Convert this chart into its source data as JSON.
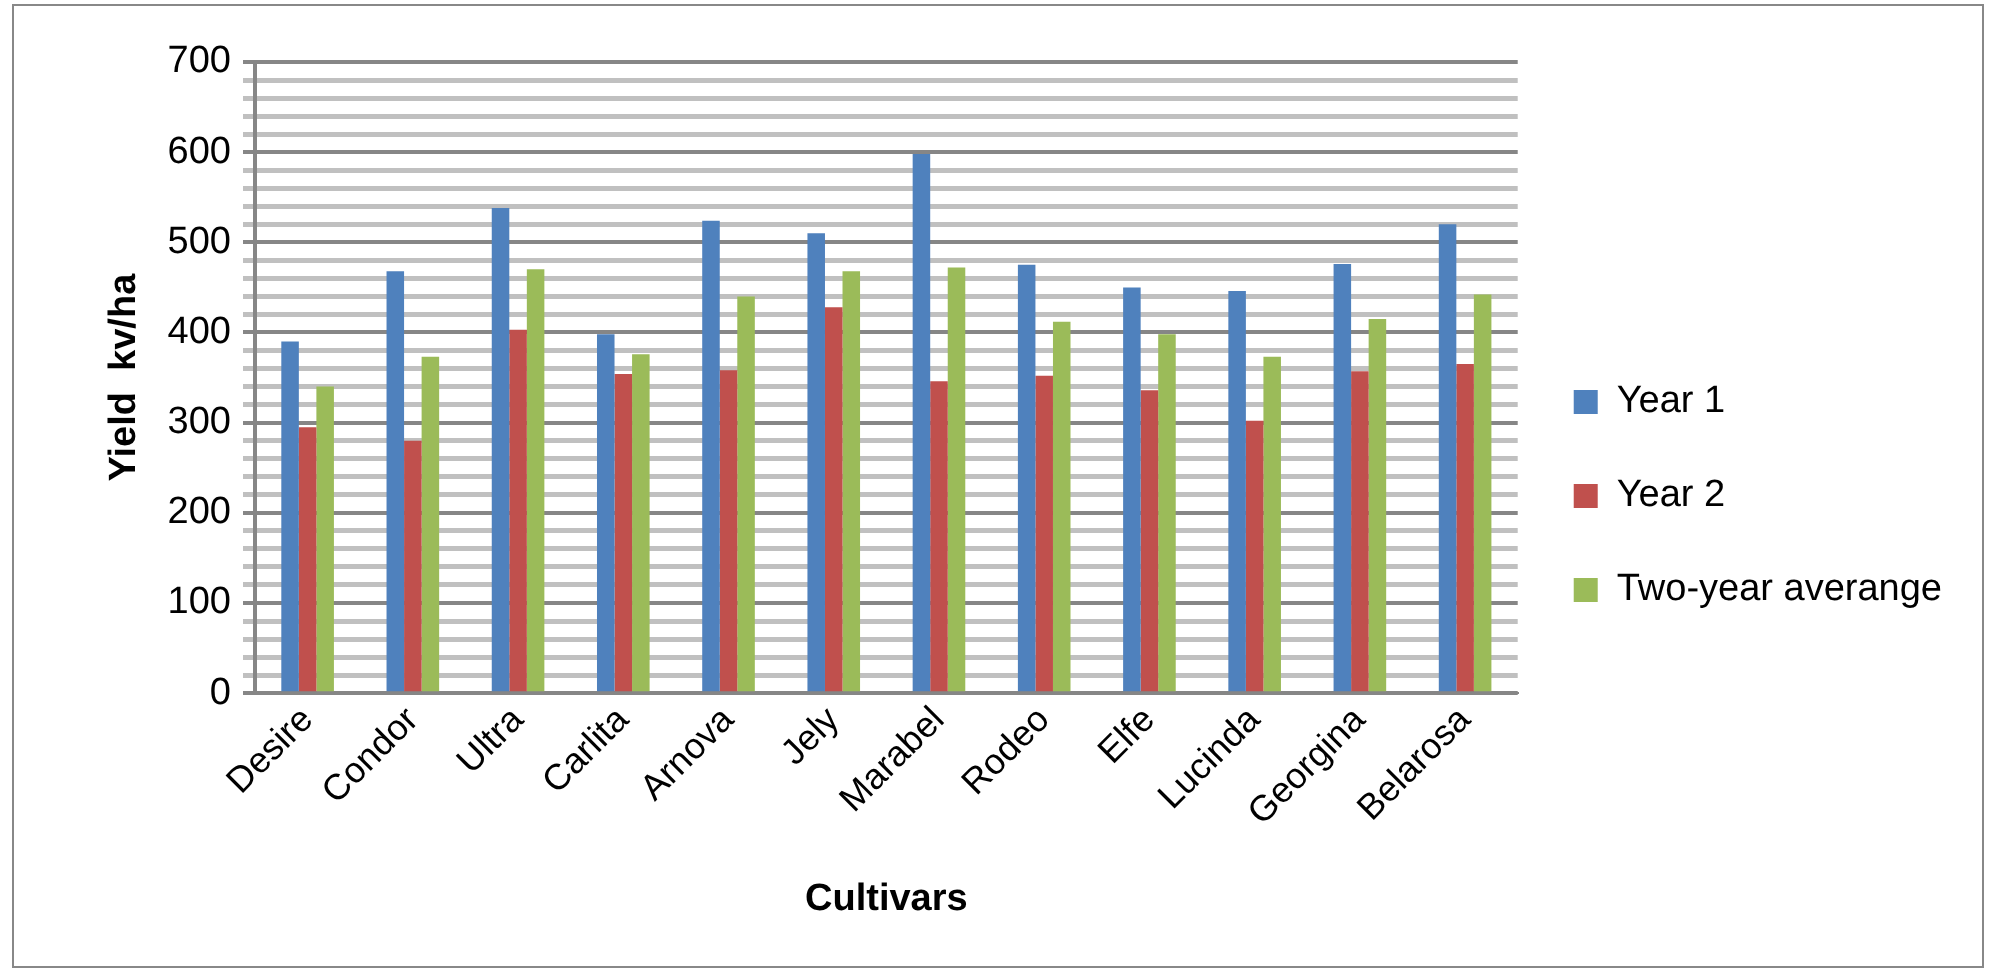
{
  "chart_data": {
    "type": "bar",
    "xlabel": "Cultivars",
    "ylabel": "Yield  kv/ha",
    "categories": [
      "Desire",
      "Condor",
      "Ultra",
      "Carlita",
      "Arnova",
      "Jely",
      "Marabel",
      "Rodeo",
      "Elfe",
      "Lucinda",
      "Georgina",
      "Belarosa"
    ],
    "series": [
      {
        "name": "Year 1",
        "color": "#4f81bd",
        "values": [
          390,
          468,
          538,
          398,
          524,
          510,
          598,
          475,
          450,
          446,
          476,
          520
        ]
      },
      {
        "name": "Year 2",
        "color": "#c0504d",
        "values": [
          295,
          280,
          403,
          354,
          358,
          428,
          346,
          352,
          336,
          302,
          357,
          365
        ]
      },
      {
        "name": "Two-year averange",
        "color": "#9bbb59",
        "values": [
          340,
          373,
          470,
          376,
          440,
          468,
          472,
          412,
          398,
          373,
          415,
          442
        ]
      }
    ],
    "ylim": [
      0,
      700
    ],
    "yticks": [
      0,
      {
        "value": 20,
        "label": null
      },
      {
        "value": 40,
        "label": null
      },
      {
        "value": 60,
        "label": null
      },
      {
        "value": 80,
        "label": null
      },
      100,
      {
        "value": 120,
        "label": null
      },
      {
        "value": 140,
        "label": null
      },
      {
        "value": 160,
        "label": null
      },
      {
        "value": 180,
        "label": null
      },
      200,
      {
        "value": 220,
        "label": null
      },
      {
        "value": 240,
        "label": null
      },
      {
        "value": 260,
        "label": null
      },
      {
        "value": 280,
        "label": null
      },
      300,
      {
        "value": 320,
        "label": null
      },
      {
        "value": 340,
        "label": null
      },
      {
        "value": 360,
        "label": null
      },
      {
        "value": 380,
        "label": null
      },
      400,
      {
        "value": 420,
        "label": null
      },
      {
        "value": 440,
        "label": null
      },
      {
        "value": 460,
        "label": null
      },
      {
        "value": 480,
        "label": null
      },
      500,
      {
        "value": 520,
        "label": null
      },
      {
        "value": 540,
        "label": null
      },
      {
        "value": 560,
        "label": null
      },
      {
        "value": 580,
        "label": null
      },
      600,
      {
        "value": 620,
        "label": null
      },
      {
        "value": 640,
        "label": null
      },
      {
        "value": 660,
        "label": null
      },
      {
        "value": 680,
        "label": null
      },
      700
    ],
    "grid": "y",
    "legend": "right"
  }
}
